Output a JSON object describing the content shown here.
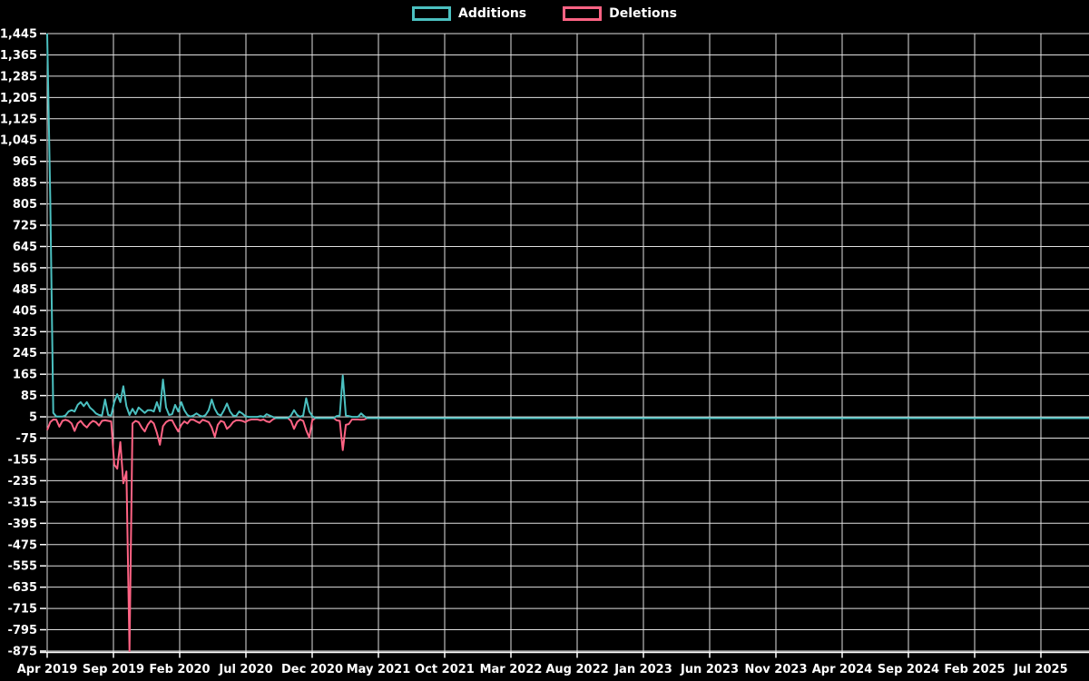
{
  "colors": {
    "background": "#000000",
    "grid": "#e0e0e0",
    "axis_line": "#ffffff",
    "axis_text": "#ffffff",
    "additions": "#4bc0c0",
    "deletions": "#ff6384"
  },
  "legend": {
    "position": "top",
    "items": [
      {
        "label": "Additions",
        "color": "#4bc0c0"
      },
      {
        "label": "Deletions",
        "color": "#ff6384"
      }
    ]
  },
  "chart_data": {
    "type": "line",
    "title": "",
    "xlabel": "",
    "ylabel": "",
    "grid": true,
    "legend_position": "top",
    "ylim": [
      -875,
      1445
    ],
    "y_tick_step": 80,
    "y_tick_values": [
      1445,
      1365,
      1285,
      1205,
      1125,
      1045,
      965,
      885,
      805,
      725,
      645,
      565,
      485,
      405,
      325,
      245,
      165,
      85,
      5,
      -75,
      -155,
      -235,
      -315,
      -395,
      -475,
      -555,
      -635,
      -715,
      -795,
      -875
    ],
    "y_tick_labels": [
      "1,445",
      "1,365",
      "1,285",
      "1,205",
      "1,125",
      "1,045",
      "965",
      "885",
      "805",
      "725",
      "645",
      "565",
      "485",
      "405",
      "325",
      "245",
      "165",
      "85",
      "5",
      "-75",
      "-155",
      "-235",
      "-315",
      "-395",
      "-475",
      "-555",
      "-635",
      "-715",
      "-795",
      "-875"
    ],
    "x_tick_labels": [
      "Apr 2019",
      "Sep 2019",
      "Feb 2020",
      "Jul 2020",
      "Dec 2020",
      "May 2021",
      "Oct 2021",
      "Mar 2022",
      "Aug 2022",
      "Jan 2023",
      "Jun 2023",
      "Nov 2023",
      "Apr 2024",
      "Sep 2024",
      "Feb 2025",
      "Jul 2025"
    ],
    "x_note": "Weekly code-frequency data. week 0 = first week of Apr 2019; x gridlines every 5 months. Peak additions 1,445 (first week); peak deletions -875 (mid Oct 2019). Activity ends mid-May 2021, then both series flat at 0 through Jul 2025.",
    "series": [
      {
        "name": "Additions",
        "color": "#4bc0c0"
      },
      {
        "name": "Deletions",
        "color": "#ff6384"
      }
    ],
    "weekly_points": [
      [
        0,
        1445,
        -45
      ],
      [
        1,
        820,
        -15
      ],
      [
        2,
        20,
        -5
      ],
      [
        3,
        6,
        -6
      ],
      [
        4,
        6,
        -32
      ],
      [
        5,
        6,
        -10
      ],
      [
        6,
        10,
        -6
      ],
      [
        7,
        25,
        -10
      ],
      [
        8,
        30,
        -20
      ],
      [
        9,
        25,
        -48
      ],
      [
        10,
        50,
        -20
      ],
      [
        11,
        60,
        -10
      ],
      [
        12,
        45,
        -25
      ],
      [
        13,
        60,
        -35
      ],
      [
        14,
        40,
        -20
      ],
      [
        15,
        30,
        -10
      ],
      [
        16,
        18,
        -15
      ],
      [
        17,
        12,
        -28
      ],
      [
        18,
        10,
        -10
      ],
      [
        19,
        70,
        -8
      ],
      [
        20,
        12,
        -10
      ],
      [
        21,
        10,
        -12
      ],
      [
        22,
        60,
        -175
      ],
      [
        23,
        90,
        -190
      ],
      [
        24,
        60,
        -90
      ],
      [
        25,
        120,
        -245
      ],
      [
        26,
        45,
        -200
      ],
      [
        27,
        12,
        -875
      ],
      [
        28,
        35,
        -20
      ],
      [
        29,
        15,
        -10
      ],
      [
        30,
        40,
        -15
      ],
      [
        31,
        30,
        -35
      ],
      [
        32,
        20,
        -50
      ],
      [
        33,
        30,
        -25
      ],
      [
        34,
        30,
        -10
      ],
      [
        35,
        25,
        -20
      ],
      [
        36,
        60,
        -55
      ],
      [
        37,
        25,
        -100
      ],
      [
        38,
        145,
        -30
      ],
      [
        39,
        40,
        -15
      ],
      [
        40,
        12,
        -8
      ],
      [
        41,
        15,
        -8
      ],
      [
        42,
        50,
        -30
      ],
      [
        43,
        25,
        -50
      ],
      [
        44,
        60,
        -25
      ],
      [
        45,
        30,
        -12
      ],
      [
        46,
        12,
        -20
      ],
      [
        47,
        6,
        -6
      ],
      [
        48,
        10,
        -6
      ],
      [
        49,
        18,
        -12
      ],
      [
        50,
        10,
        -18
      ],
      [
        51,
        6,
        -6
      ],
      [
        52,
        12,
        -10
      ],
      [
        53,
        30,
        -15
      ],
      [
        54,
        70,
        -35
      ],
      [
        55,
        35,
        -70
      ],
      [
        56,
        15,
        -25
      ],
      [
        57,
        10,
        -10
      ],
      [
        58,
        30,
        -15
      ],
      [
        59,
        55,
        -40
      ],
      [
        60,
        25,
        -30
      ],
      [
        61,
        10,
        -15
      ],
      [
        62,
        8,
        -8
      ],
      [
        63,
        25,
        -8
      ],
      [
        64,
        18,
        -10
      ],
      [
        65,
        8,
        -15
      ],
      [
        66,
        5,
        -8
      ],
      [
        67,
        5,
        -5
      ],
      [
        68,
        5,
        -5
      ],
      [
        69,
        5,
        -5
      ],
      [
        70,
        8,
        -8
      ],
      [
        71,
        5,
        -5
      ],
      [
        72,
        15,
        -12
      ],
      [
        73,
        10,
        -15
      ],
      [
        74,
        5,
        -5
      ],
      [
        75,
        0,
        0
      ],
      [
        76,
        0,
        0
      ],
      [
        77,
        0,
        0
      ],
      [
        78,
        0,
        0
      ],
      [
        79,
        0,
        0
      ],
      [
        80,
        10,
        -10
      ],
      [
        81,
        30,
        -40
      ],
      [
        82,
        12,
        -15
      ],
      [
        83,
        5,
        -5
      ],
      [
        84,
        10,
        -10
      ],
      [
        85,
        75,
        -45
      ],
      [
        86,
        25,
        -73
      ],
      [
        87,
        8,
        -8
      ],
      [
        88,
        0,
        0
      ],
      [
        89,
        0,
        0
      ],
      [
        90,
        0,
        0
      ],
      [
        91,
        0,
        0
      ],
      [
        92,
        0,
        0
      ],
      [
        93,
        0,
        0
      ],
      [
        94,
        0,
        0
      ],
      [
        95,
        8,
        -8
      ],
      [
        96,
        10,
        -10
      ],
      [
        97,
        160,
        -120
      ],
      [
        98,
        10,
        -25
      ],
      [
        99,
        8,
        -22
      ],
      [
        100,
        5,
        -5
      ],
      [
        101,
        5,
        -5
      ],
      [
        102,
        5,
        -5
      ],
      [
        103,
        18,
        -6
      ],
      [
        104,
        8,
        -5
      ],
      [
        105,
        0,
        0
      ],
      [
        342,
        0,
        0
      ]
    ]
  }
}
